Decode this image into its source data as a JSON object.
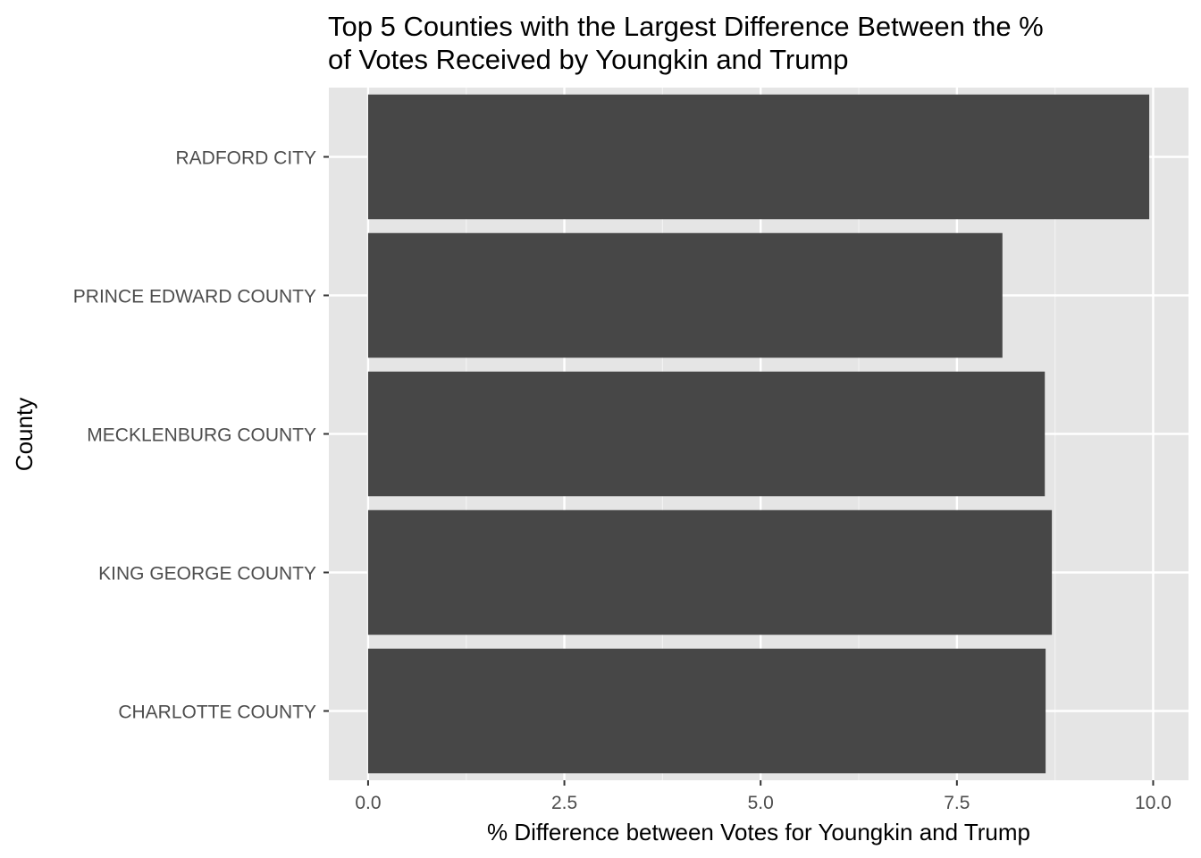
{
  "chart_data": {
    "type": "bar",
    "orientation": "horizontal",
    "title": "Top 5 Counties with the Largest Difference Between the % of Votes Received by Youngkin and Trump",
    "title_lines": [
      "Top 5 Counties with the Largest Difference Between the %",
      "of Votes Received by Youngkin and Trump"
    ],
    "xlabel": "% Difference between Votes for Youngkin and Trump",
    "ylabel": "County",
    "categories": [
      "RADFORD CITY",
      "PRINCE EDWARD COUNTY",
      "MECKLENBURG COUNTY",
      "KING GEORGE COUNTY",
      "CHARLOTTE COUNTY"
    ],
    "values": [
      9.95,
      8.08,
      8.62,
      8.71,
      8.63
    ],
    "xlim": [
      -0.5,
      10.45
    ],
    "xticks": [
      0.0,
      2.5,
      5.0,
      7.5,
      10.0
    ],
    "xtick_labels": [
      "0.0",
      "2.5",
      "5.0",
      "7.5",
      "10.0"
    ],
    "grid": true,
    "legend": "none",
    "colors": {
      "bar": "#474747",
      "panel": "#e5e5e5",
      "grid_major": "#ffffff",
      "grid_minor": "#f2f2f2",
      "tick_text": "#4d4d4d",
      "tick_mark": "#333333"
    }
  }
}
